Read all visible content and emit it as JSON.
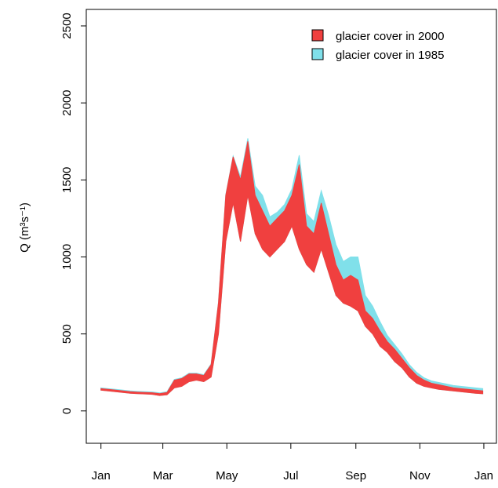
{
  "chart_data": {
    "type": "band",
    "y_label": "Q (m³s⁻¹)",
    "x": [
      0,
      7,
      14,
      21,
      28,
      35,
      42,
      49,
      56,
      63,
      70,
      77,
      84,
      91,
      98,
      105,
      112,
      119,
      126,
      133,
      140,
      147,
      154,
      161,
      168,
      175,
      182,
      189,
      196,
      203,
      210,
      217,
      224,
      231,
      238,
      245,
      252,
      259,
      266,
      273,
      280,
      287,
      294,
      301,
      308,
      315,
      322,
      329,
      336,
      343,
      350,
      357,
      364
    ],
    "xlim": [
      -14,
      377
    ],
    "xticks": [
      {
        "value": 0,
        "label": "Jan"
      },
      {
        "value": 59,
        "label": "Mar"
      },
      {
        "value": 120,
        "label": "May"
      },
      {
        "value": 181,
        "label": "Jul"
      },
      {
        "value": 243,
        "label": "Sep"
      },
      {
        "value": 304,
        "label": "Nov"
      },
      {
        "value": 365,
        "label": "Jan"
      }
    ],
    "ylim": [
      -210,
      2607
    ],
    "yticks": [
      0,
      500,
      1000,
      1500,
      2000,
      2500
    ],
    "legend": "top-right",
    "series": [
      {
        "name": "glacier cover in 1985",
        "color": "#80e0ea",
        "lower": [
          135,
          130,
          125,
          120,
          115,
          112,
          110,
          108,
          100,
          105,
          150,
          160,
          190,
          200,
          190,
          220,
          500,
          1100,
          1350,
          1100,
          1400,
          1150,
          1050,
          1000,
          1050,
          1100,
          1200,
          1050,
          950,
          900,
          1050,
          900,
          750,
          700,
          680,
          650,
          550,
          500,
          420,
          380,
          320,
          280,
          220,
          180,
          160,
          150,
          140,
          135,
          130,
          125,
          120,
          115,
          112
        ],
        "values": [
          150,
          145,
          140,
          135,
          130,
          127,
          125,
          123,
          117,
          125,
          205,
          215,
          245,
          245,
          235,
          305,
          705,
          1405,
          1655,
          1520,
          1770,
          1460,
          1400,
          1260,
          1290,
          1340,
          1440,
          1660,
          1280,
          1230,
          1430,
          1270,
          1080,
          970,
          1000,
          1000,
          750,
          680,
          580,
          490,
          430,
          370,
          300,
          250,
          215,
          195,
          185,
          175,
          165,
          160,
          155,
          150,
          145
        ]
      },
      {
        "name": "glacier cover in 2000",
        "color": "#f0403f",
        "lower": [
          135,
          130,
          125,
          120,
          115,
          112,
          110,
          108,
          100,
          105,
          150,
          160,
          190,
          200,
          190,
          220,
          500,
          1100,
          1350,
          1100,
          1400,
          1150,
          1050,
          1000,
          1050,
          1100,
          1200,
          1050,
          950,
          900,
          1050,
          900,
          750,
          700,
          680,
          650,
          550,
          500,
          420,
          380,
          320,
          280,
          220,
          180,
          160,
          150,
          140,
          135,
          130,
          125,
          120,
          115,
          112
        ],
        "values": [
          145,
          140,
          135,
          130,
          125,
          122,
          120,
          118,
          112,
          120,
          200,
          210,
          240,
          240,
          230,
          300,
          700,
          1400,
          1650,
          1500,
          1750,
          1400,
          1300,
          1200,
          1250,
          1300,
          1400,
          1600,
          1200,
          1150,
          1350,
          1150,
          950,
          850,
          880,
          850,
          650,
          600,
          520,
          450,
          400,
          340,
          280,
          230,
          200,
          180,
          170,
          160,
          150,
          145,
          140,
          135,
          130
        ]
      }
    ]
  }
}
